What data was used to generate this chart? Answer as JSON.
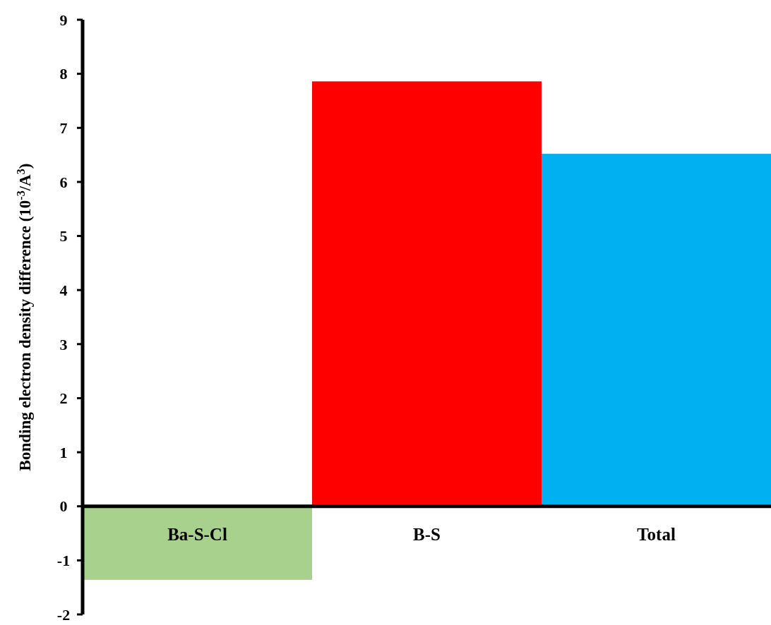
{
  "chart_data": {
    "type": "bar",
    "ylabel": "Bonding electron density difference (10$^{-3}$/A$^{3}$)",
    "categories": [
      "Ba-S-Cl",
      "B-S",
      "Total"
    ],
    "values": [
      -1.36,
      7.86,
      6.52
    ],
    "colors": [
      "#a9d18e",
      "#ff0000",
      "#00b0f0"
    ],
    "ylim": [
      -2,
      9
    ],
    "yticks": [
      -2,
      -1,
      0,
      1,
      2,
      3,
      4,
      5,
      6,
      7,
      8,
      9
    ],
    "grid": false
  }
}
